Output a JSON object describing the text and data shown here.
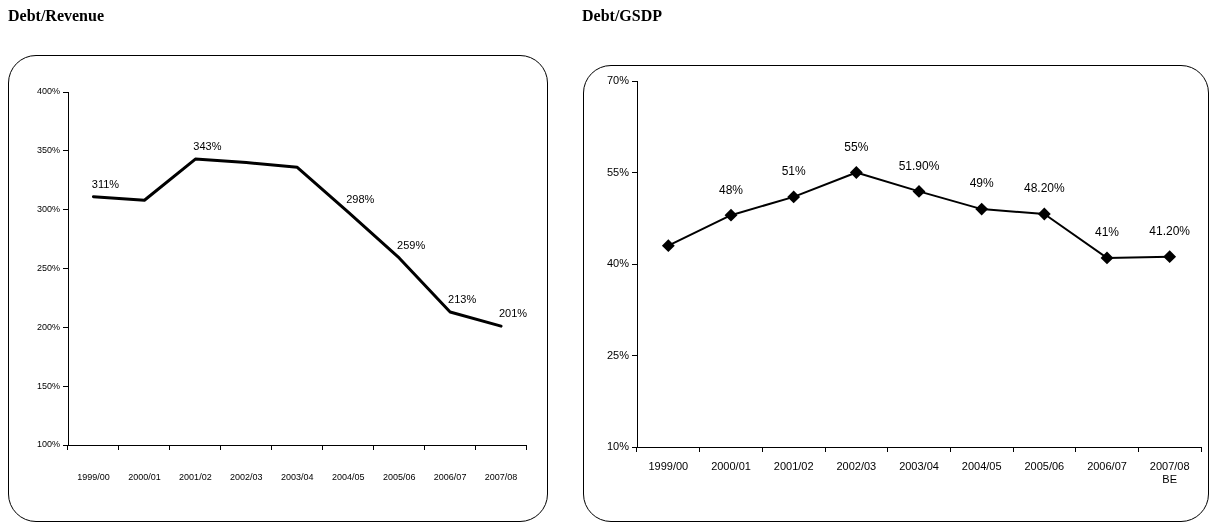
{
  "chart_data": [
    {
      "type": "line",
      "title": "Debt/Revenue",
      "categories": [
        "1999/00",
        "2000/01",
        "2001/02",
        "2002/03",
        "2003/04",
        "2004/05",
        "2005/06",
        "2006/07",
        "2007/08"
      ],
      "values": [
        311,
        308,
        343,
        340,
        336,
        298,
        259,
        213,
        201
      ],
      "value_labels": [
        "311%",
        null,
        "343%",
        null,
        null,
        "298%",
        "259%",
        "213%",
        "201%"
      ],
      "color": "#000000",
      "ylim": [
        100,
        400
      ],
      "yticks": [
        {
          "value": 100,
          "label": "100%"
        },
        {
          "value": 150,
          "label": "150%"
        },
        {
          "value": 200,
          "label": "200%"
        },
        {
          "value": 250,
          "label": "250%"
        },
        {
          "value": 300,
          "label": "300%"
        },
        {
          "value": 350,
          "label": "350%"
        },
        {
          "value": 400,
          "label": "400%"
        }
      ]
    },
    {
      "type": "line",
      "title": "Debt/GSDP",
      "categories": [
        "1999/00",
        "2000/01",
        "2001/02",
        "2002/03",
        "2003/04",
        "2004/05",
        "2005/06",
        "2006/07",
        "2007/08\nBE"
      ],
      "values": [
        43,
        48,
        51,
        55,
        51.9,
        49,
        48.2,
        41,
        41.2
      ],
      "value_labels": [
        null,
        "48%",
        "51%",
        "55%",
        "51.90%",
        "49%",
        "48.20%",
        "41%",
        "41.20%"
      ],
      "color": "#000000",
      "marker": "diamond",
      "ylim": [
        10,
        70
      ],
      "yticks": [
        {
          "value": 10,
          "label": "10%"
        },
        {
          "value": 25,
          "label": "25%"
        },
        {
          "value": 40,
          "label": "40%"
        },
        {
          "value": 55,
          "label": "55%"
        },
        {
          "value": 70,
          "label": "70%"
        }
      ]
    }
  ]
}
